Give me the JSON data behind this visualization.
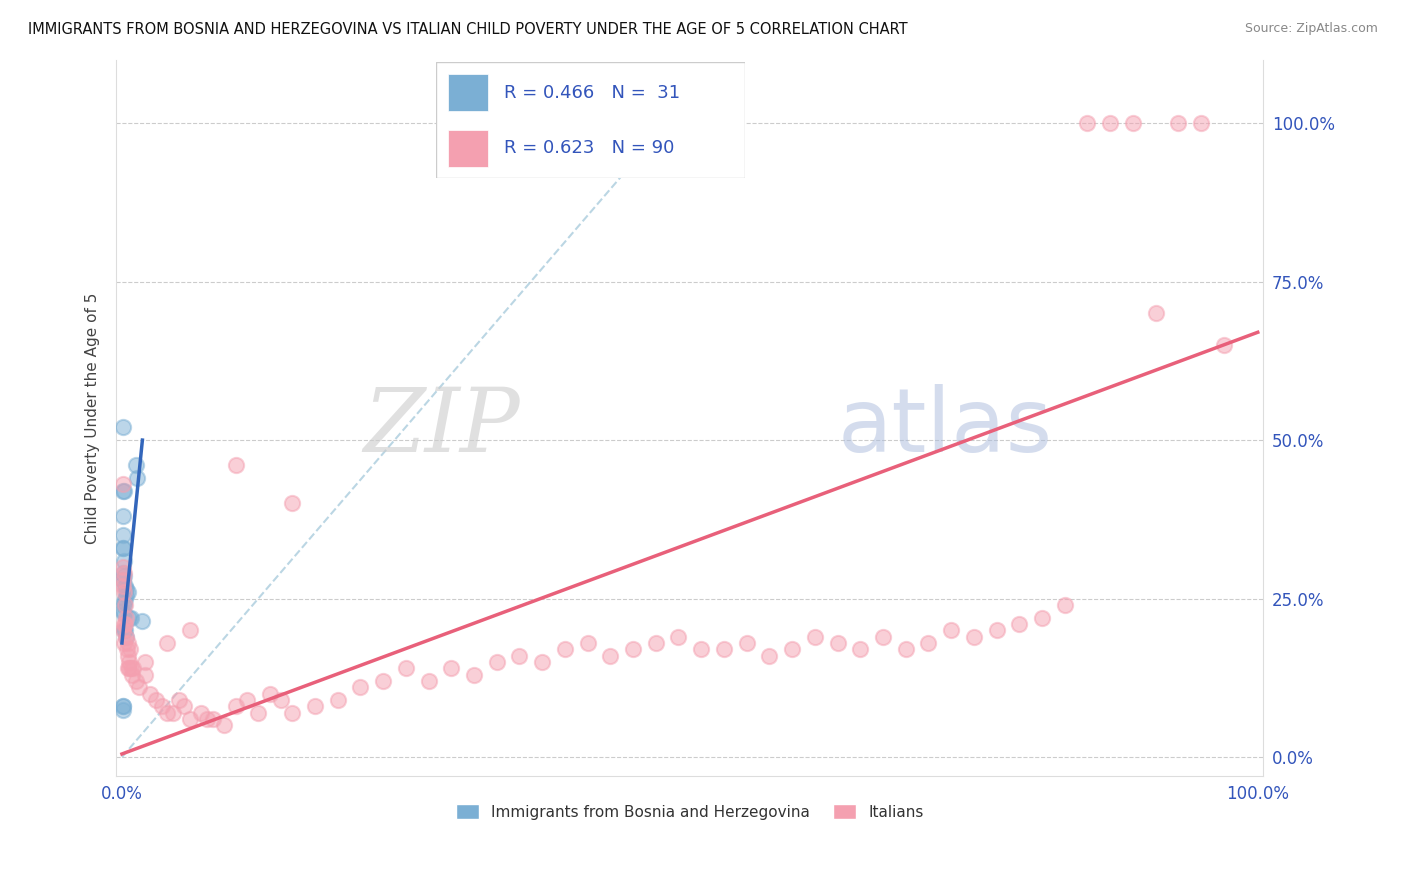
{
  "title": "IMMIGRANTS FROM BOSNIA AND HERZEGOVINA VS ITALIAN CHILD POVERTY UNDER THE AGE OF 5 CORRELATION CHART",
  "source": "Source: ZipAtlas.com",
  "ylabel": "Child Poverty Under the Age of 5",
  "legend_label1": "Immigrants from Bosnia and Herzegovina",
  "legend_label2": "Italians",
  "blue_color": "#7BAFD4",
  "pink_color": "#F4A0B0",
  "blue_line_color": "#3366BB",
  "pink_line_color": "#E8607A",
  "dash_line_color": "#AACCDD",
  "blue_dots_x": [
    0.05,
    0.08,
    0.08,
    0.1,
    0.1,
    0.1,
    0.1,
    0.12,
    0.12,
    0.15,
    0.15,
    0.15,
    0.18,
    0.2,
    0.2,
    0.2,
    0.25,
    0.3,
    0.3,
    0.35,
    0.35,
    0.4,
    0.5,
    0.6,
    0.8,
    1.2,
    1.3,
    1.8,
    0.05,
    0.08,
    0.12
  ],
  "blue_dots_y": [
    52,
    42,
    38,
    35,
    33,
    29,
    23,
    33,
    28,
    42,
    28.5,
    22.5,
    24,
    31,
    24.5,
    20,
    25,
    27,
    20,
    25.5,
    19,
    26.5,
    26,
    22,
    22,
    46,
    44,
    21.5,
    8,
    7.5,
    8
  ],
  "pink_dots_x": [
    0.05,
    0.08,
    0.1,
    0.1,
    0.12,
    0.15,
    0.15,
    0.2,
    0.2,
    0.25,
    0.3,
    0.35,
    0.4,
    0.45,
    0.5,
    0.5,
    0.55,
    0.6,
    0.65,
    0.7,
    0.8,
    0.9,
    1.0,
    1.2,
    1.5,
    2.0,
    2.5,
    3.0,
    3.5,
    4.0,
    4.5,
    5.0,
    5.5,
    6.0,
    7.0,
    7.5,
    8.0,
    9.0,
    10.0,
    11.0,
    12.0,
    13.0,
    14.0,
    15.0,
    17.0,
    19.0,
    21.0,
    23.0,
    25.0,
    27.0,
    29.0,
    31.0,
    33.0,
    35.0,
    37.0,
    39.0,
    41.0,
    43.0,
    45.0,
    47.0,
    49.0,
    51.0,
    53.0,
    55.0,
    57.0,
    59.0,
    61.0,
    63.0,
    65.0,
    67.0,
    69.0,
    71.0,
    73.0,
    75.0,
    77.0,
    79.0,
    81.0,
    83.0,
    85.0,
    87.0,
    89.0,
    91.0,
    93.0,
    95.0,
    97.0,
    2.0,
    4.0,
    6.0,
    10.0,
    15.0
  ],
  "pink_dots_y": [
    43,
    30,
    28,
    20,
    27,
    29,
    21,
    26,
    18,
    24,
    21,
    19,
    22,
    17,
    18,
    14,
    16,
    15,
    14,
    17,
    14,
    13,
    14,
    12,
    11,
    13,
    10,
    9,
    8,
    7,
    7,
    9,
    8,
    6,
    7,
    6,
    6,
    5,
    8,
    9,
    7,
    10,
    9,
    7,
    8,
    9,
    11,
    12,
    14,
    12,
    14,
    13,
    15,
    16,
    15,
    17,
    18,
    16,
    17,
    18,
    19,
    17,
    17,
    18,
    16,
    17,
    19,
    18,
    17,
    19,
    17,
    18,
    20,
    19,
    20,
    21,
    22,
    24,
    100,
    100,
    100,
    70,
    100,
    100,
    65,
    15,
    18,
    20,
    46,
    40
  ],
  "blue_line_x": [
    0.0,
    1.8
  ],
  "blue_line_y": [
    18.0,
    50.0
  ],
  "pink_line_x": [
    0.0,
    100.0
  ],
  "pink_line_y": [
    0.5,
    67.0
  ],
  "dash_line_x": [
    0.0,
    48.0
  ],
  "dash_line_y": [
    0.0,
    100.0
  ],
  "xlim": [
    0,
    100
  ],
  "ylim": [
    0,
    105
  ],
  "yticks": [
    0,
    25,
    50,
    75,
    100
  ],
  "ytick_labels": [
    "0.0%",
    "25.0%",
    "50.0%",
    "75.0%",
    "100.0%"
  ]
}
